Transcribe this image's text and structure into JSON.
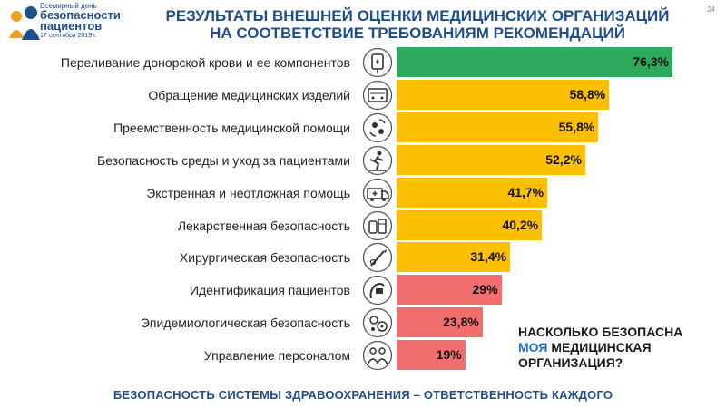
{
  "logo": {
    "line1": "Всемирный день",
    "line2": "безопасности",
    "line3": "пациентов",
    "date": "17 сентября 2019 г."
  },
  "page_number": "24",
  "title_line1": "РЕЗУЛЬТАТЫ ВНЕШНЕЙ ОЦЕНКИ МЕДИЦИНСКИХ ОРГАНИЗАЦИЙ",
  "title_line2": "НА СООТВЕТСТВИЕ ТРЕБОВАНИЯМ РЕКОМЕНДАЦИЙ",
  "question": {
    "line1": "НАСКОЛЬКО БЕЗОПАСНА",
    "highlight": "МОЯ",
    "line2_rest": " МЕДИЦИНСКАЯ",
    "line3": "ОРГАНИЗАЦИЯ?"
  },
  "footer": "БЕЗОПАСНОСТЬ СИСТЕМЫ ЗДРАВООХРАНЕНИЯ – ОТВЕТСТВЕННОСТЬ КАЖДОГО",
  "colors": {
    "green": "#2eaa5c",
    "yellow": "#fdc000",
    "red": "#f26d6d",
    "title": "#1f4e8c"
  },
  "chart_data": {
    "type": "bar",
    "orientation": "horizontal",
    "xlim": [
      0,
      100
    ],
    "categories": [
      "Переливание донорской крови и ее компонентов",
      "Обращение медицинских изделий",
      "Преемственность медицинской помощи",
      "Безопасность среды и уход за пациентами",
      "Экстренная и неотложная помощь",
      "Лекарственная безопасность",
      "Хирургическая безопасность",
      "Идентификация пациентов",
      "Эпидемиологическая безопасность",
      "Управление персоналом"
    ],
    "values": [
      76.3,
      58.8,
      55.8,
      52.2,
      41.7,
      40.2,
      31.4,
      29,
      23.8,
      19
    ],
    "value_labels": [
      "76,3%",
      "58,8%",
      "55,8%",
      "52,2%",
      "41,7%",
      "40,2%",
      "31,4%",
      "29%",
      "23,8%",
      "19%"
    ],
    "bar_colors": [
      "green",
      "yellow",
      "yellow",
      "yellow",
      "yellow",
      "yellow",
      "yellow",
      "red",
      "red",
      "red"
    ],
    "icons": [
      "blood-bag-icon",
      "medical-devices-icon",
      "care-continuity-icon",
      "fall-hazard-icon",
      "ambulance-icon",
      "medications-icon",
      "scalpel-icon",
      "patient-id-icon",
      "germs-icon",
      "staff-icon"
    ]
  }
}
